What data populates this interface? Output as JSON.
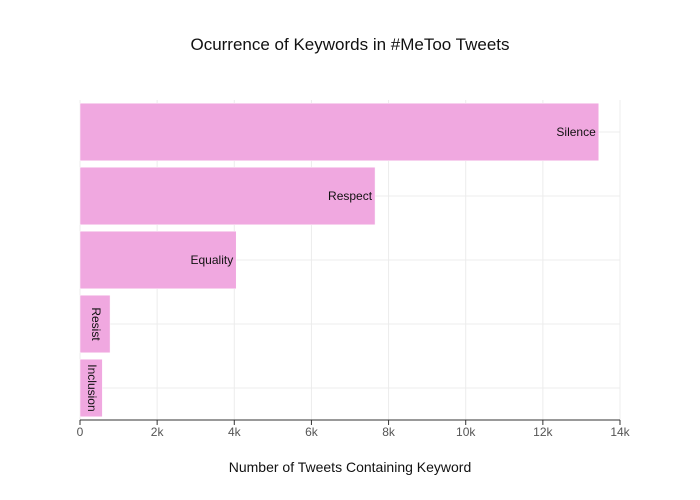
{
  "chart_data": {
    "type": "bar",
    "orientation": "horizontal",
    "title": "Ocurrence of Keywords in #MeToo Tweets",
    "xlabel": "Number of Tweets Containing Keyword",
    "ylabel": "",
    "categories": [
      "Silence",
      "Respect",
      "Equality",
      "Resist",
      "Inclusion"
    ],
    "values": [
      13450,
      7650,
      4050,
      780,
      580
    ],
    "xlim": [
      0,
      14000
    ],
    "x_ticks": [
      0,
      2000,
      4000,
      6000,
      8000,
      10000,
      12000,
      14000
    ],
    "x_tick_labels": [
      "0",
      "2k",
      "4k",
      "6k",
      "8k",
      "10k",
      "12k",
      "14k"
    ],
    "bar_color": "#f0a8e0",
    "bar_edge_color": "#ffffff",
    "grid": true,
    "legend": false
  }
}
